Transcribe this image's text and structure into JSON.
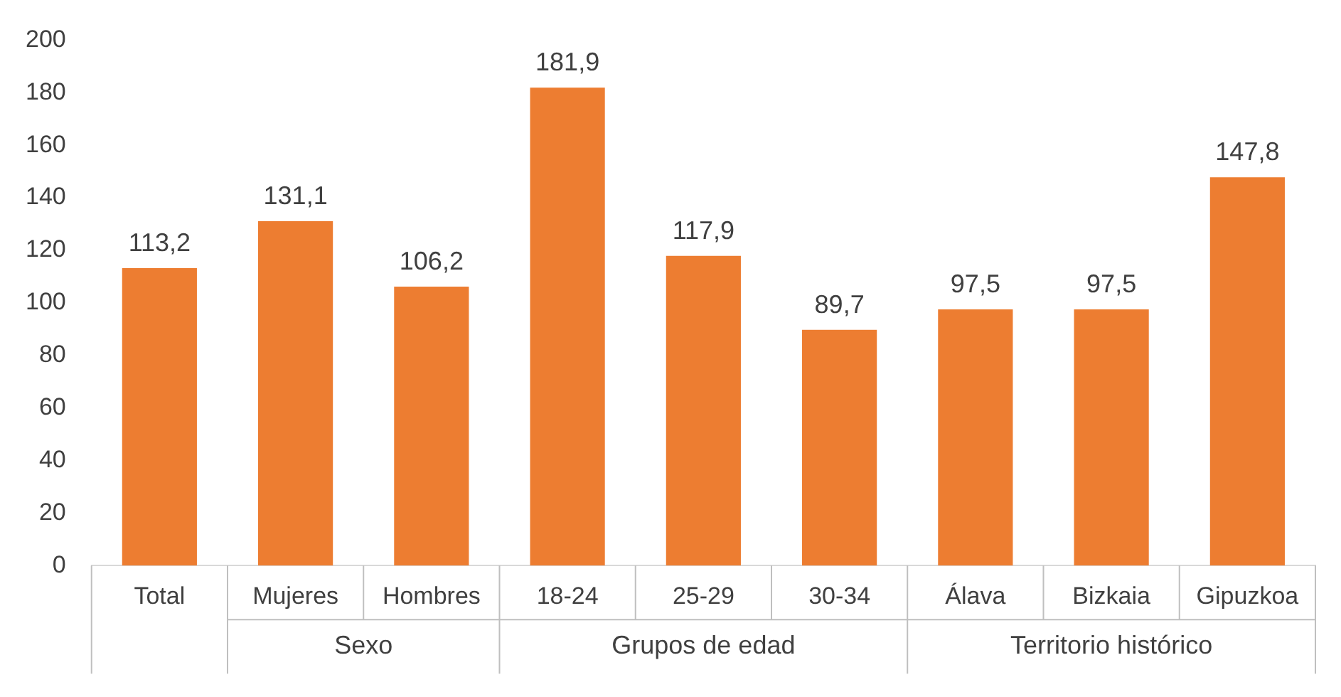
{
  "chart_data": {
    "type": "bar",
    "categories": [
      "Total",
      "Mujeres",
      "Hombres",
      "18-24",
      "25-29",
      "30-34",
      "Álava",
      "Bizkaia",
      "Gipuzkoa"
    ],
    "values": [
      113.2,
      131.1,
      106.2,
      181.9,
      117.9,
      89.7,
      97.5,
      97.5,
      147.8
    ],
    "value_labels": [
      "113,2",
      "131,1",
      "106,2",
      "181,9",
      "117,9",
      "89,7",
      "97,5",
      "97,5",
      "147,8"
    ],
    "color": "#ed7d31",
    "ylim": [
      0,
      200
    ],
    "yticks": [
      0,
      20,
      40,
      60,
      80,
      100,
      120,
      140,
      160,
      180,
      200
    ],
    "grid": false,
    "legend": false,
    "annotations": [
      "Sexo",
      "Grupos de edad",
      "Territorio histórico"
    ]
  }
}
